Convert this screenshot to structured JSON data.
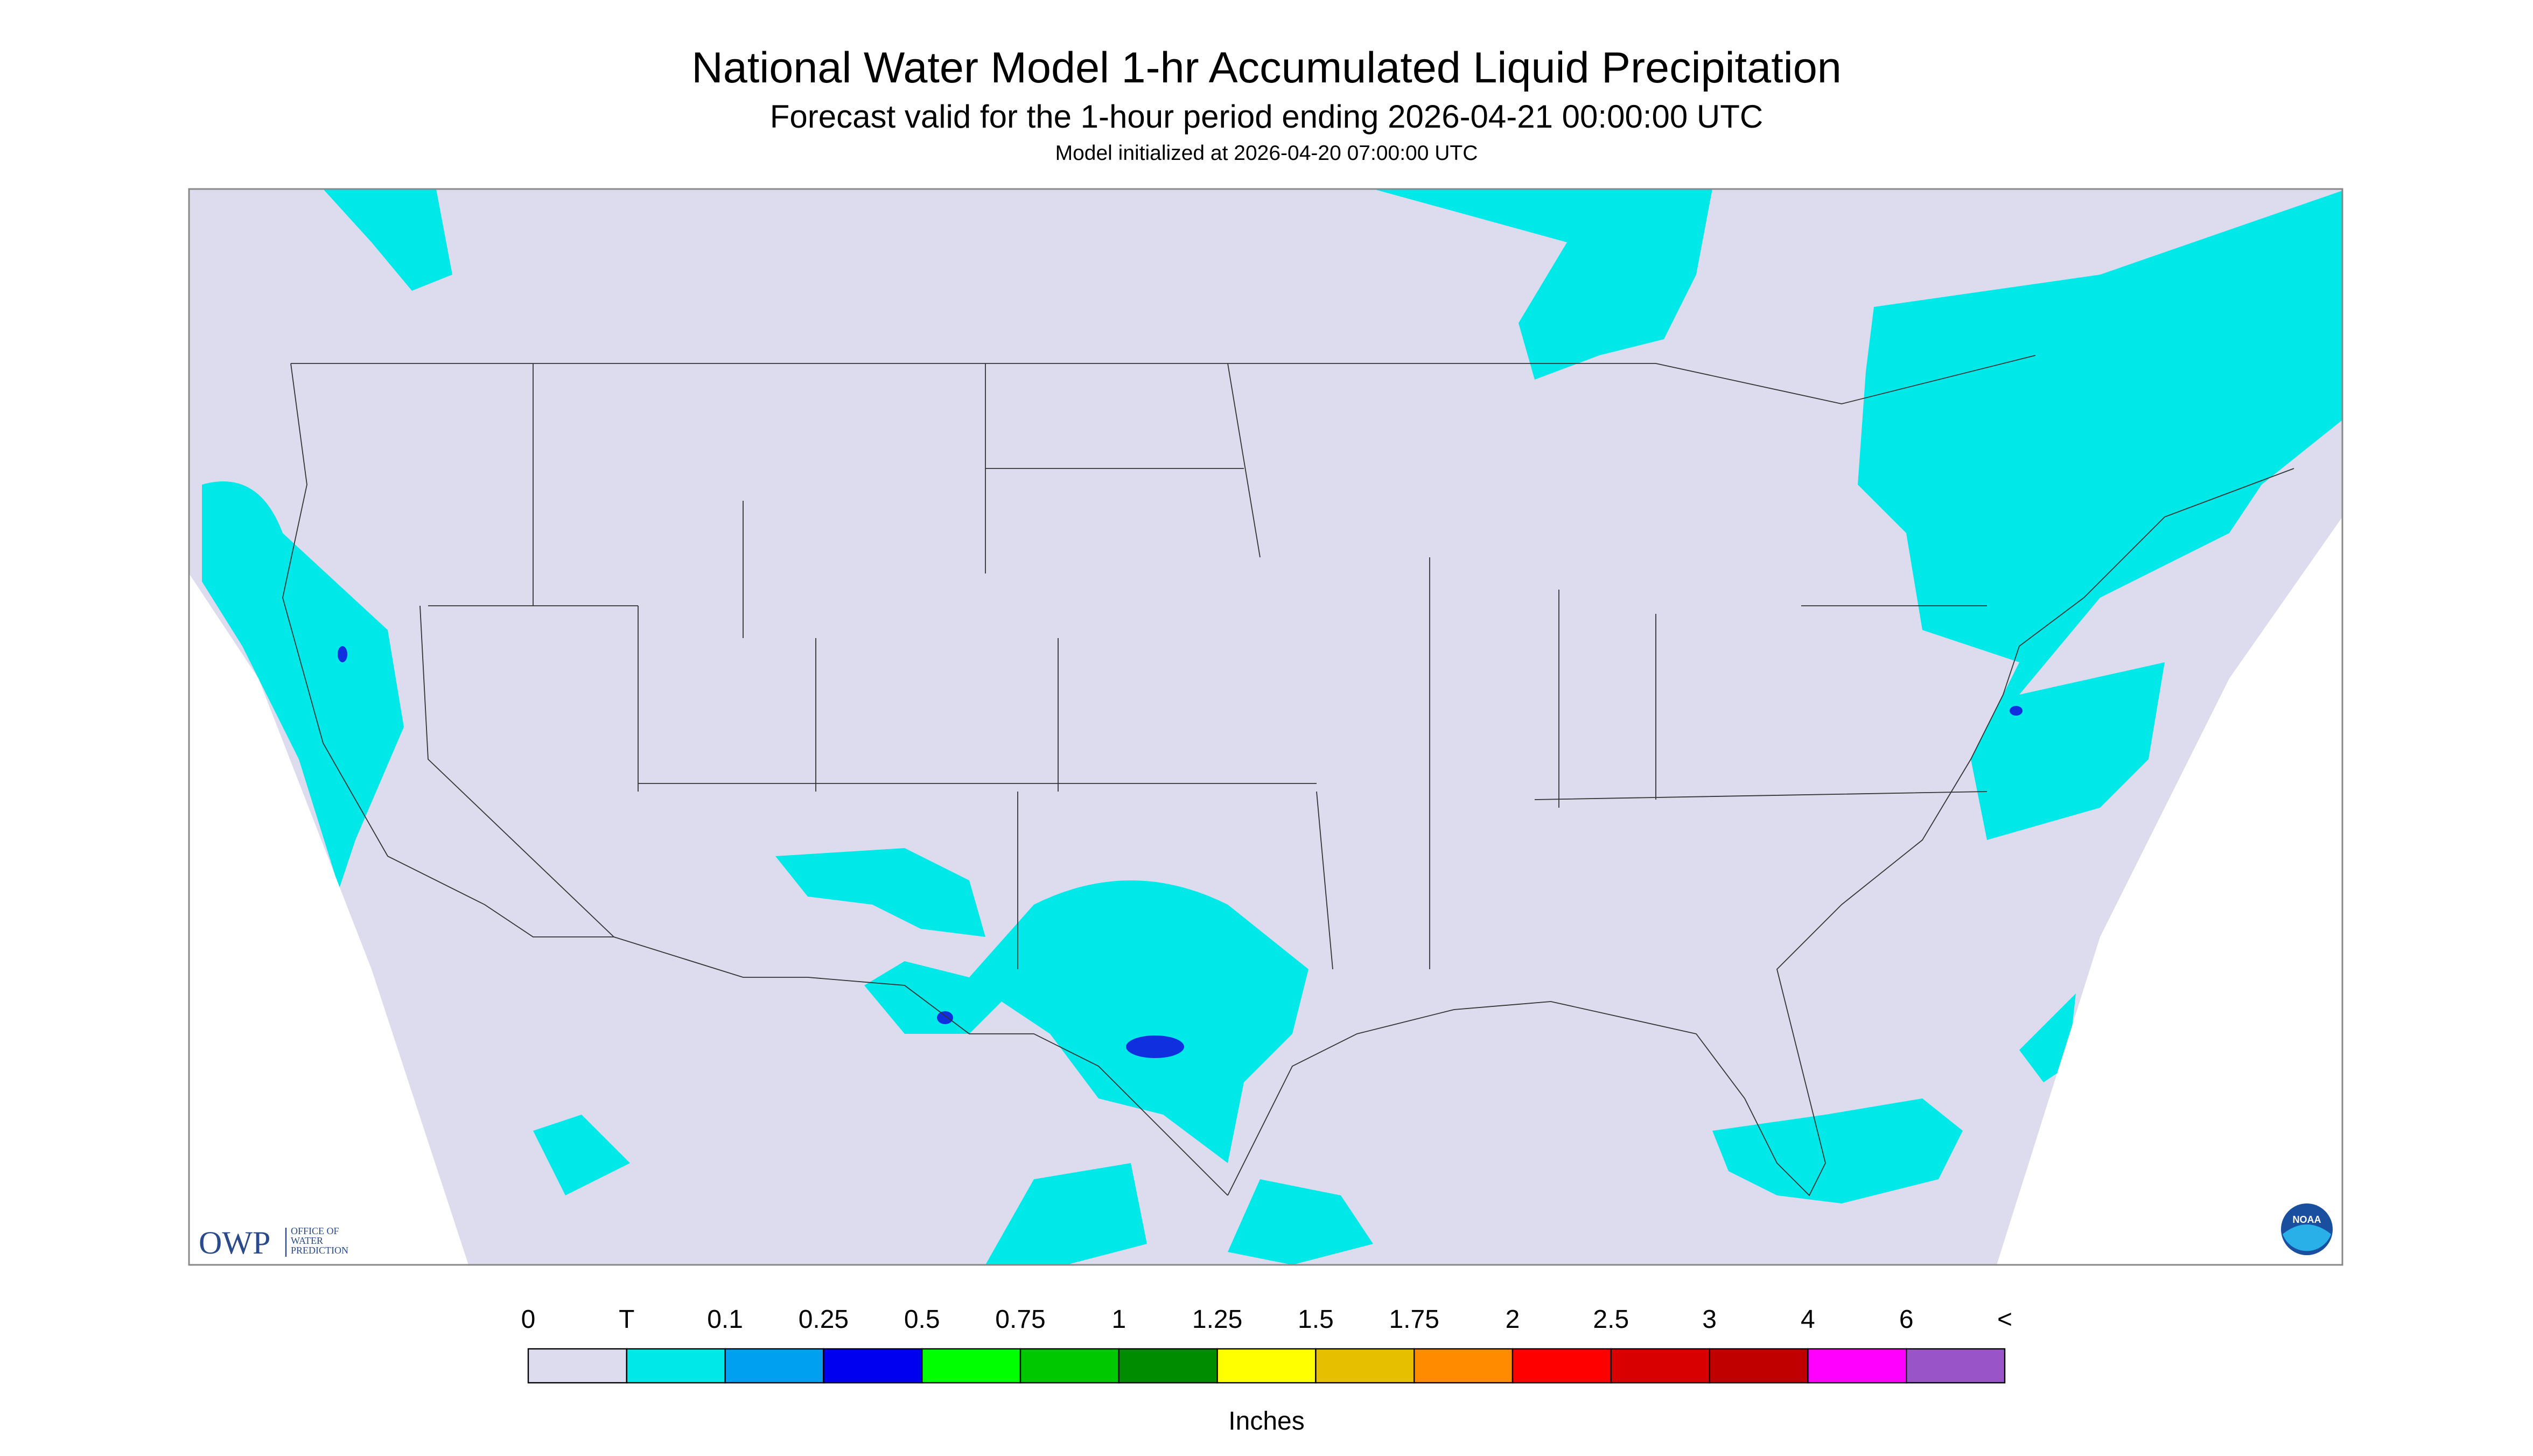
{
  "header": {
    "title": "National Water Model 1-hr Accumulated Liquid Precipitation",
    "subtitle": "Forecast valid for the 1-hour period ending 2026-04-21 00:00:00 UTC",
    "init": "Model initialized at 2026-04-20 07:00:00 UTC"
  },
  "legend": {
    "labels": [
      "0",
      "T",
      "0.1",
      "0.25",
      "0.5",
      "0.75",
      "1",
      "1.25",
      "1.5",
      "1.75",
      "2",
      "2.5",
      "3",
      "4",
      "6",
      "<"
    ],
    "colors": [
      "#dcdcee",
      "#00e8e8",
      "#00a0f0",
      "#0000f0",
      "#00ff00",
      "#00c800",
      "#008c00",
      "#ffff00",
      "#e6c000",
      "#ff8c00",
      "#ff0000",
      "#d80000",
      "#c00000",
      "#ff00ff",
      "#9955c8"
    ],
    "unit": "Inches"
  },
  "logos": {
    "owp": "OWP",
    "owp_lines": [
      "OFFICE OF",
      "WATER",
      "PREDICTION"
    ],
    "noaa": "NOAA"
  }
}
